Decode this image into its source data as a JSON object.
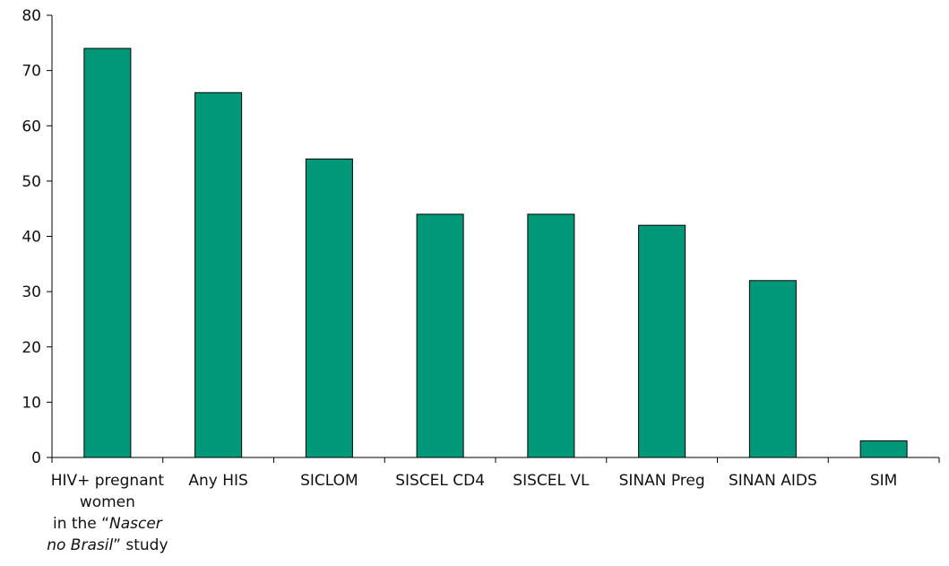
{
  "chart_data": {
    "type": "bar",
    "title": "",
    "xlabel": "",
    "ylabel": "",
    "ylim": [
      0,
      80
    ],
    "yticks": [
      "0",
      "10",
      "20",
      "30",
      "40",
      "50",
      "60",
      "70",
      "80"
    ],
    "grid": false,
    "categories": [
      {
        "lines": [
          [
            {
              "text": "HIV+ pregnant",
              "italic": false
            }
          ],
          [
            {
              "text": "women",
              "italic": false
            }
          ],
          [
            {
              "text": "in the “",
              "italic": false
            },
            {
              "text": "Nascer",
              "italic": true
            }
          ],
          [
            {
              "text": "no Brasil",
              "italic": true
            },
            {
              "text": "” study",
              "italic": false
            }
          ]
        ]
      },
      {
        "lines": [
          [
            {
              "text": "Any HIS",
              "italic": false
            }
          ]
        ]
      },
      {
        "lines": [
          [
            {
              "text": "SICLOM",
              "italic": false
            }
          ]
        ]
      },
      {
        "lines": [
          [
            {
              "text": "SISCEL CD4",
              "italic": false
            }
          ]
        ]
      },
      {
        "lines": [
          [
            {
              "text": "SISCEL VL",
              "italic": false
            }
          ]
        ]
      },
      {
        "lines": [
          [
            {
              "text": "SINAN Preg",
              "italic": false
            }
          ]
        ]
      },
      {
        "lines": [
          [
            {
              "text": "SINAN AIDS",
              "italic": false
            }
          ]
        ]
      },
      {
        "lines": [
          [
            {
              "text": "SIM",
              "italic": false
            }
          ]
        ]
      }
    ],
    "values": [
      74,
      66,
      54,
      44,
      44,
      42,
      32,
      3
    ],
    "bar_color": "#009878"
  }
}
